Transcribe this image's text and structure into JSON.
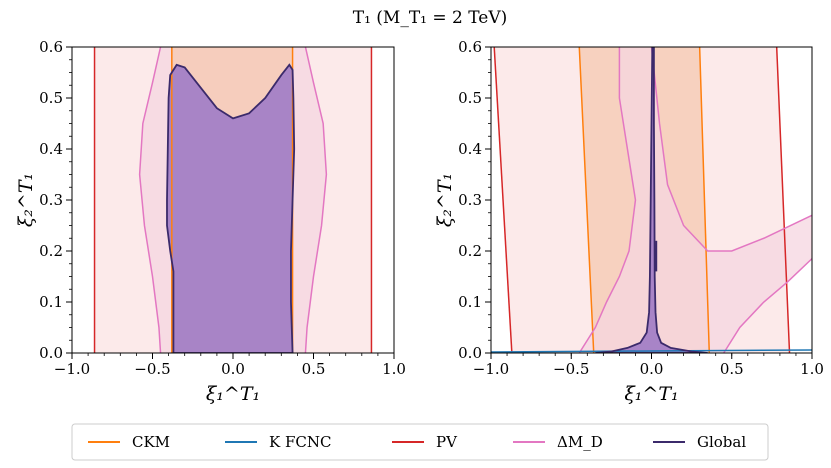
{
  "figure": {
    "title": "T₁ (M_T₁ = 2 TeV)"
  },
  "legend": {
    "entries": [
      {
        "label": "CKM",
        "color": "#ff7f0e"
      },
      {
        "label": "K FCNC",
        "color": "#1f77b4"
      },
      {
        "label": "PV",
        "color": "#d62728"
      },
      {
        "label": "ΔM_D",
        "color": "#e377c2"
      },
      {
        "label": "Global",
        "color": "#3b2a6b"
      }
    ]
  },
  "chart_data": [
    {
      "type": "contour",
      "panel": "left",
      "xlabel": "ξ₁^T₁",
      "ylabel": "ξ₂^T₁",
      "xlim": [
        -1.0,
        1.0
      ],
      "ylim": [
        0.0,
        0.6
      ],
      "xticks": [
        -1.0,
        -0.5,
        0.0,
        0.5,
        1.0
      ],
      "xtick_labels": [
        "−1.0",
        "−0.5",
        "0.0",
        "0.5",
        "1.0"
      ],
      "yticks": [
        0.0,
        0.1,
        0.2,
        0.3,
        0.4,
        0.5,
        0.6
      ],
      "ytick_labels": [
        "0.0",
        "0.1",
        "0.2",
        "0.3",
        "0.4",
        "0.5",
        "0.6"
      ],
      "regions": [
        {
          "name": "PV",
          "color": "#d62728",
          "fill": "#fbe3e3",
          "boundary": [
            [
              [
                -0.86,
                0.0
              ],
              [
                -0.86,
                0.6
              ]
            ],
            [
              [
                0.86,
                0.0
              ],
              [
                0.86,
                0.6
              ]
            ]
          ]
        },
        {
          "name": "ΔM_D",
          "color": "#e377c2",
          "fill": "#f6d5e0",
          "boundary": [
            [
              [
                -0.45,
                0.0
              ],
              [
                -0.46,
                0.05
              ],
              [
                -0.48,
                0.1
              ],
              [
                -0.5,
                0.15
              ],
              [
                -0.55,
                0.25
              ],
              [
                -0.58,
                0.35
              ],
              [
                -0.56,
                0.45
              ],
              [
                -0.5,
                0.53
              ],
              [
                -0.45,
                0.6
              ]
            ],
            [
              [
                0.45,
                0.0
              ],
              [
                0.46,
                0.05
              ],
              [
                0.48,
                0.1
              ],
              [
                0.5,
                0.15
              ],
              [
                0.55,
                0.25
              ],
              [
                0.58,
                0.35
              ],
              [
                0.56,
                0.45
              ],
              [
                0.5,
                0.53
              ],
              [
                0.45,
                0.6
              ]
            ]
          ]
        },
        {
          "name": "CKM",
          "color": "#ff7f0e",
          "fill": "#f6c8b0",
          "boundary": [
            [
              [
                -0.38,
                0.0
              ],
              [
                -0.38,
                0.6
              ]
            ],
            [
              [
                0.37,
                0.0
              ],
              [
                0.37,
                0.6
              ]
            ]
          ]
        },
        {
          "name": "Global",
          "color": "#3b2a6b",
          "fill": "#a37fc6",
          "boundary": [
            [
              [
                -0.37,
                0.0
              ],
              [
                -0.37,
                0.16
              ],
              [
                -0.39,
                0.2
              ],
              [
                -0.41,
                0.25
              ],
              [
                -0.41,
                0.3
              ],
              [
                -0.405,
                0.4
              ],
              [
                -0.4,
                0.5
              ],
              [
                -0.39,
                0.545
              ],
              [
                -0.35,
                0.565
              ],
              [
                -0.3,
                0.56
              ],
              [
                -0.2,
                0.52
              ],
              [
                -0.1,
                0.48
              ],
              [
                0.0,
                0.46
              ],
              [
                0.1,
                0.47
              ],
              [
                0.2,
                0.5
              ],
              [
                0.3,
                0.545
              ],
              [
                0.35,
                0.565
              ],
              [
                0.37,
                0.555
              ],
              [
                0.375,
                0.5
              ],
              [
                0.38,
                0.4
              ],
              [
                0.37,
                0.3
              ],
              [
                0.36,
                0.2
              ],
              [
                0.36,
                0.1
              ],
              [
                0.37,
                0.0
              ]
            ]
          ]
        }
      ]
    },
    {
      "type": "contour",
      "panel": "right",
      "xlabel": "ξ₁^T₁",
      "ylabel": "ξ₂^T₁",
      "xlim": [
        -1.0,
        1.0
      ],
      "ylim": [
        0.0,
        0.6
      ],
      "xticks": [
        -1.0,
        -0.5,
        0.0,
        0.5,
        1.0
      ],
      "xtick_labels": [
        "−1.0",
        "−0.5",
        "0.0",
        "0.5",
        "1.0"
      ],
      "yticks": [
        0.0,
        0.1,
        0.2,
        0.3,
        0.4,
        0.5,
        0.6
      ],
      "ytick_labels": [
        "0.0",
        "0.1",
        "0.2",
        "0.3",
        "0.4",
        "0.5",
        "0.6"
      ],
      "regions": [
        {
          "name": "PV",
          "color": "#d62728",
          "fill": "#fbe3e3",
          "boundary": [
            [
              [
                -0.98,
                0.6
              ],
              [
                -0.87,
                0.0
              ]
            ],
            [
              [
                0.78,
                0.6
              ],
              [
                0.86,
                0.0
              ]
            ]
          ]
        },
        {
          "name": "CKM",
          "color": "#ff7f0e",
          "fill": "#f6c8b0",
          "boundary": [
            [
              [
                -0.45,
                0.6
              ],
              [
                -0.36,
                0.0
              ]
            ],
            [
              [
                0.3,
                0.6
              ],
              [
                0.36,
                0.0
              ]
            ]
          ]
        },
        {
          "name": "ΔM_D",
          "color": "#e377c2",
          "fill": "#f6d5e0",
          "boundary": [
            [
              [
                -0.45,
                0.0
              ],
              [
                -0.35,
                0.05
              ],
              [
                -0.28,
                0.1
              ],
              [
                -0.2,
                0.15
              ],
              [
                -0.14,
                0.2
              ],
              [
                -0.1,
                0.3
              ],
              [
                -0.15,
                0.4
              ],
              [
                -0.2,
                0.5
              ],
              [
                -0.2,
                0.6
              ]
            ],
            [
              [
                0.0,
                0.6
              ],
              [
                0.05,
                0.45
              ],
              [
                0.1,
                0.33
              ],
              [
                0.2,
                0.25
              ],
              [
                0.35,
                0.2
              ],
              [
                0.5,
                0.2
              ],
              [
                0.7,
                0.225
              ],
              [
                1.0,
                0.27
              ]
            ],
            [
              [
                0.45,
                0.0
              ],
              [
                0.55,
                0.05
              ],
              [
                0.7,
                0.1
              ],
              [
                0.85,
                0.14
              ],
              [
                1.0,
                0.185
              ]
            ]
          ]
        },
        {
          "name": "K FCNC",
          "color": "#1f77b4",
          "fill": "#c6dbef",
          "boundary": [
            [
              [
                -1.0,
                0.002
              ],
              [
                0.0,
                0.004
              ],
              [
                1.0,
                0.006
              ]
            ]
          ]
        },
        {
          "name": "Global",
          "color": "#3b2a6b",
          "fill": "#a37fc6",
          "boundary": [
            [
              [
                -0.35,
                0.0
              ],
              [
                -0.25,
                0.003
              ],
              [
                -0.15,
                0.01
              ],
              [
                -0.07,
                0.02
              ],
              [
                -0.03,
                0.04
              ],
              [
                -0.015,
                0.08
              ],
              [
                -0.01,
                0.15
              ],
              [
                -0.005,
                0.3
              ],
              [
                0.0,
                0.45
              ],
              [
                0.005,
                0.6
              ],
              [
                0.015,
                0.6
              ],
              [
                0.015,
                0.45
              ],
              [
                0.018,
                0.3
              ],
              [
                0.02,
                0.15
              ],
              [
                0.025,
                0.08
              ],
              [
                0.035,
                0.04
              ],
              [
                0.06,
                0.02
              ],
              [
                0.12,
                0.01
              ],
              [
                0.25,
                0.003
              ],
              [
                0.35,
                0.0
              ]
            ],
            [
              [
                0.03,
                0.16
              ],
              [
                0.03,
                0.22
              ]
            ]
          ]
        }
      ]
    }
  ]
}
